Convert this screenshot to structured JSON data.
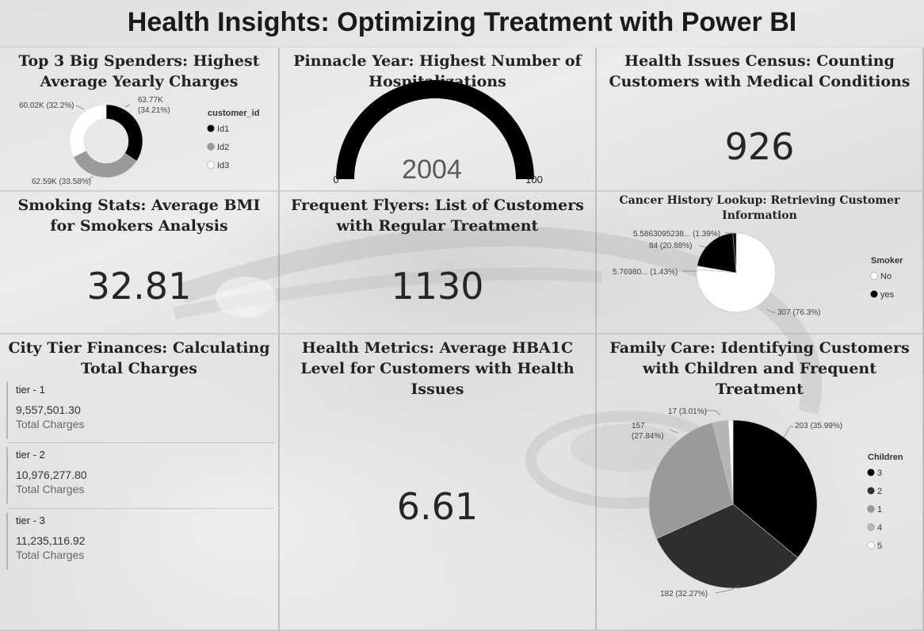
{
  "dashboard_title": "Health Insights: Optimizing Treatment with Power BI",
  "tiles": {
    "spenders": {
      "title": "Top 3 Big Spenders: Highest Average Yearly Charges",
      "legend_title": "customer_id"
    },
    "pinnacle": {
      "title": "Pinnacle Year: Highest Number of Hospitalizations",
      "value": "2004",
      "min_label": "0",
      "max_label": "100",
      "fill_fraction": 1.0
    },
    "census": {
      "title": "Health Issues Census: Counting Customers with Medical Conditions",
      "value": "926"
    },
    "smoking": {
      "title": "Smoking Stats: Average BMI for Smokers Analysis",
      "value": "32.81"
    },
    "flyers": {
      "title": "Frequent Flyers: List of Customers with Regular Treatment",
      "value": "1130"
    },
    "cancer": {
      "title": "Cancer History Lookup: Retrieving Customer Information",
      "legend_title": "Smoker"
    },
    "city": {
      "title": "City Tier Finances: Calculating Total Charges",
      "cards": [
        {
          "name": "tier - 1",
          "value": "9,557,501.30",
          "label": "Total Charges"
        },
        {
          "name": "tier - 2",
          "value": "10,976,277.80",
          "label": "Total Charges"
        },
        {
          "name": "tier - 3",
          "value": "11,235,116.92",
          "label": "Total Charges"
        }
      ]
    },
    "hba1c": {
      "title": "Health Metrics: Average HBA1C Level for Customers with Health Issues",
      "value": "6.61"
    },
    "family": {
      "title": "Family Care: Identifying Customers with Children and Frequent Treatment",
      "legend_title": "Children"
    }
  },
  "chart_data": [
    {
      "id": "spenders",
      "type": "pie",
      "variant": "donut",
      "categories": [
        "Id1",
        "Id2",
        "Id3"
      ],
      "values": [
        63770,
        62590,
        60020
      ],
      "data_labels": [
        "63.77K\n(34.21%)",
        "62.59K (33.58%)",
        "60.02K (32.2%)"
      ],
      "colors": [
        "#000000",
        "#9a9a9a",
        "#ffffff"
      ],
      "legend_placement": "right"
    },
    {
      "id": "cancer",
      "type": "pie",
      "categories": [
        "No",
        "yes"
      ],
      "slices": [
        {
          "category": "No",
          "value": 307,
          "label": "307 (76.3%)"
        },
        {
          "category": "yes",
          "value": 84,
          "label": "84 (20.88%)"
        },
        {
          "category": "No",
          "value": 5.7698,
          "label": "5.76980... (1.43%)"
        },
        {
          "category": "yes",
          "value": 5.5863095238,
          "label": "5.5863095238... (1.39%)"
        }
      ],
      "colors": {
        "No": "#ffffff",
        "yes": "#000000"
      },
      "legend_placement": "right"
    },
    {
      "id": "family",
      "type": "pie",
      "categories": [
        "3",
        "2",
        "1",
        "4",
        "5"
      ],
      "values": [
        203,
        182,
        157,
        17,
        5
      ],
      "data_labels": [
        "203 (35.99%)",
        "182 (32.27%)",
        "157\n(27.84%)",
        "17 (3.01%)",
        ""
      ],
      "colors": [
        "#000000",
        "#2e2e2e",
        "#9a9a9a",
        "#b5b5b5",
        "#ffffff"
      ],
      "legend_placement": "right"
    }
  ]
}
